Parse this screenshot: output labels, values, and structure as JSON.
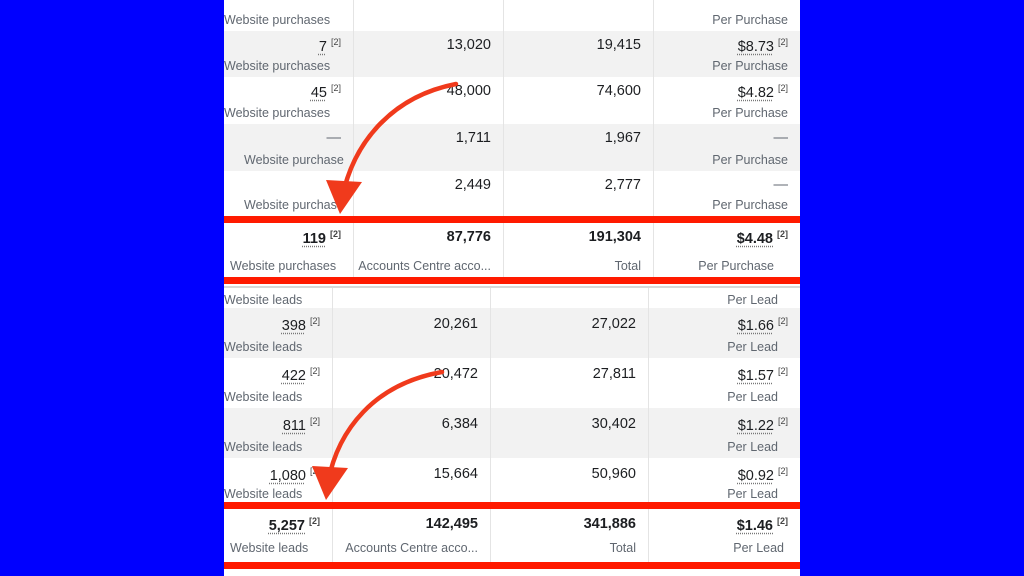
{
  "purchases": {
    "rows": [
      {
        "c1": "",
        "c1_sub": "Website purchases",
        "c2": "",
        "c3": "",
        "c4": "",
        "c4_sub": "Per Purchase"
      },
      {
        "c1": "7",
        "c1_sub": "Website purchases",
        "c2": "13,020",
        "c3": "19,415",
        "c4": "$8.73",
        "c4_sub": "Per Purchase"
      },
      {
        "c1": "45",
        "c1_sub": "Website purchases",
        "c2": "48,000",
        "c3": "74,600",
        "c4": "$4.82",
        "c4_sub": "Per Purchase"
      },
      {
        "c1": "—",
        "c1_sub": "Website purchase",
        "c2": "1,711",
        "c3": "1,967",
        "c4": "—",
        "c4_sub": "Per Purchase"
      },
      {
        "c1": "",
        "c1_sub": "Website purchase",
        "c2": "2,449",
        "c3": "2,777",
        "c4": "—",
        "c4_sub": "Per Purchase"
      }
    ],
    "total": {
      "c1": "119",
      "c1_sub": "Website purchases",
      "c2": "87,776",
      "c2_sub": "Accounts Centre acco...",
      "c3": "191,304",
      "c3_sub": "Total",
      "c4": "$4.48",
      "c4_sub": "Per Purchase"
    }
  },
  "leads": {
    "header": {
      "c1_sub": "Website leads",
      "c4_sub": "Per Lead"
    },
    "rows": [
      {
        "c1": "398",
        "c1_sub": "Website leads",
        "c2": "20,261",
        "c3": "27,022",
        "c4": "$1.66",
        "c4_sub": "Per Lead"
      },
      {
        "c1": "422",
        "c1_sub": "Website leads",
        "c2": "20,472",
        "c3": "27,811",
        "c4": "$1.57",
        "c4_sub": "Per Lead"
      },
      {
        "c1": "811",
        "c1_sub": "Website leads",
        "c2": "6,384",
        "c3": "30,402",
        "c4": "$1.22",
        "c4_sub": "Per Lead"
      },
      {
        "c1": "1,080",
        "c1_sub": "Website leads",
        "c2": "15,664",
        "c3": "50,960",
        "c4": "$0.92",
        "c4_sub": "Per Lead"
      }
    ],
    "total": {
      "c1": "5,257",
      "c1_sub": "Website leads",
      "c2": "142,495",
      "c2_sub": "Accounts Centre acco...",
      "c3": "341,886",
      "c3_sub": "Total",
      "c4": "$1.46",
      "c4_sub": "Per Lead"
    }
  },
  "footnote": "[2]",
  "colors": {
    "background": "#0000ff",
    "highlight": "#ff1a00",
    "arrow": "#f03a1c"
  },
  "icons": [
    "curved-arrow-icon"
  ]
}
